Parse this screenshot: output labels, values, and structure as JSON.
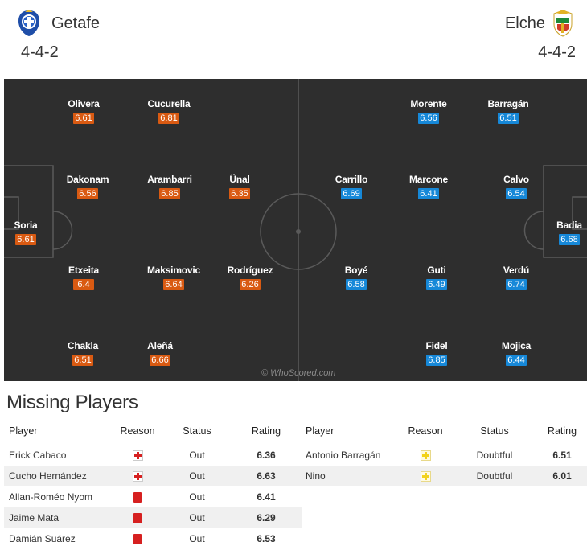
{
  "home": {
    "name": "Getafe",
    "formation": "4-4-2",
    "players": [
      {
        "name": "Olivera",
        "rating": "6.61"
      },
      {
        "name": "Cucurella",
        "rating": "6.81"
      },
      {
        "name": "Dakonam",
        "rating": "6.56"
      },
      {
        "name": "Arambarri",
        "rating": "6.85"
      },
      {
        "name": "Ünal",
        "rating": "6.35"
      },
      {
        "name": "Soria",
        "rating": "6.61"
      },
      {
        "name": "Etxeita",
        "rating": "6.4"
      },
      {
        "name": "Maksimovic",
        "rating": "6.64"
      },
      {
        "name": "Rodríguez",
        "rating": "6.26"
      },
      {
        "name": "Chakla",
        "rating": "6.51"
      },
      {
        "name": "Aleñá",
        "rating": "6.66"
      }
    ]
  },
  "away": {
    "name": "Elche",
    "formation": "4-4-2",
    "players": [
      {
        "name": "Morente",
        "rating": "6.56"
      },
      {
        "name": "Barragán",
        "rating": "6.51"
      },
      {
        "name": "Carrillo",
        "rating": "6.69"
      },
      {
        "name": "Marcone",
        "rating": "6.41"
      },
      {
        "name": "Calvo",
        "rating": "6.54"
      },
      {
        "name": "Badia",
        "rating": "6.68"
      },
      {
        "name": "Boyé",
        "rating": "6.58"
      },
      {
        "name": "Guti",
        "rating": "6.49"
      },
      {
        "name": "Verdú",
        "rating": "6.74"
      },
      {
        "name": "Fidel",
        "rating": "6.85"
      },
      {
        "name": "Mojica",
        "rating": "6.44"
      }
    ]
  },
  "watermark": "© WhoScored.com",
  "missing": {
    "title": "Missing Players",
    "headers": {
      "player": "Player",
      "reason": "Reason",
      "status": "Status",
      "rating": "Rating"
    },
    "home_rows": [
      {
        "player": "Erick Cabaco",
        "reason": "injury-icon",
        "status": "Out",
        "rating": "6.36"
      },
      {
        "player": "Cucho Hernández",
        "reason": "injury-icon",
        "status": "Out",
        "rating": "6.63"
      },
      {
        "player": "Allan-Roméo Nyom",
        "reason": "red-card-icon",
        "status": "Out",
        "rating": "6.41"
      },
      {
        "player": "Jaime Mata",
        "reason": "red-card-icon",
        "status": "Out",
        "rating": "6.29"
      },
      {
        "player": "Damián Suárez",
        "reason": "red-card-icon",
        "status": "Out",
        "rating": "6.53"
      }
    ],
    "away_rows": [
      {
        "player": "Antonio Barragán",
        "reason": "doubtful-icon",
        "status": "Doubtful",
        "rating": "6.51"
      },
      {
        "player": "Nino",
        "reason": "doubtful-icon",
        "status": "Doubtful",
        "rating": "6.01"
      }
    ]
  },
  "colors": {
    "home_rating": "#d95a12",
    "away_rating": "#1688d8",
    "pitch": "#2e2e2e"
  }
}
